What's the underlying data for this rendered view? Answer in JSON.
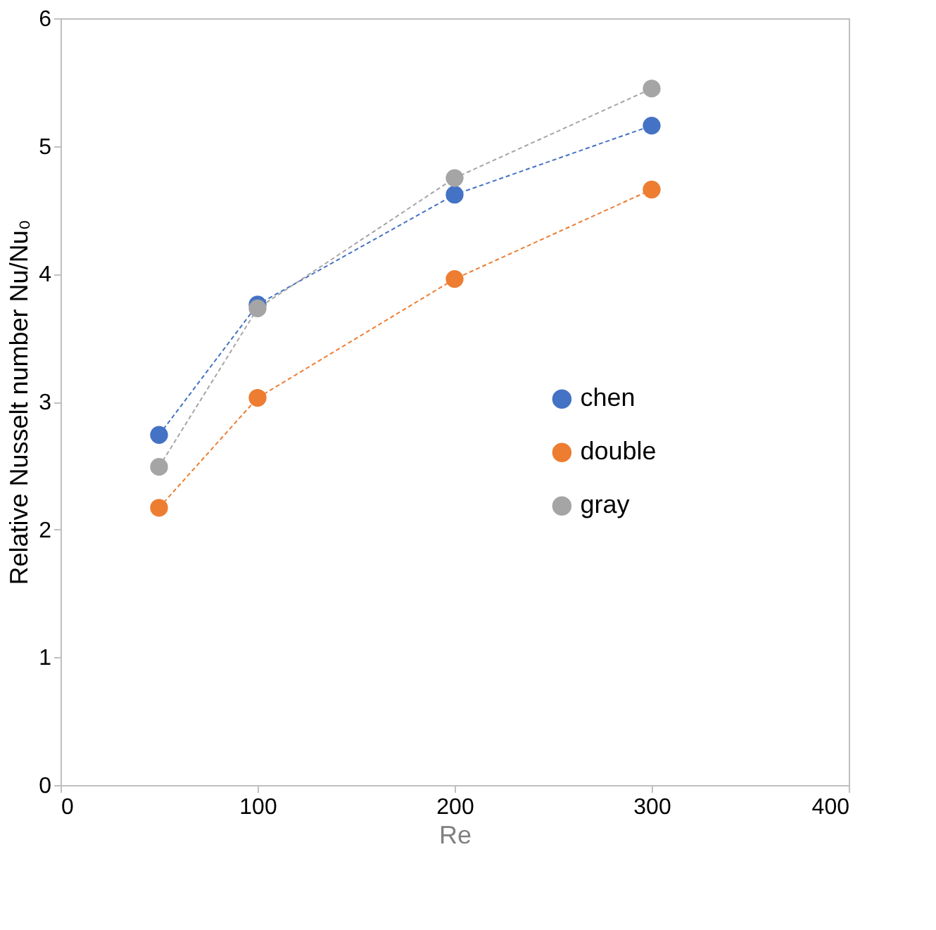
{
  "chart_data": {
    "type": "line",
    "xlabel": "Re",
    "ylabel": "Relative Nusselt number Nu/Nu₀",
    "x": [
      50,
      100,
      200,
      300
    ],
    "series": [
      {
        "name": "chen",
        "color": "#4472c4",
        "values": [
          2.74,
          3.76,
          4.62,
          5.16
        ]
      },
      {
        "name": "double",
        "color": "#ed7d31",
        "values": [
          2.17,
          3.03,
          3.96,
          4.66
        ]
      },
      {
        "name": "gray",
        "color": "#a5a5a5",
        "values": [
          2.49,
          3.73,
          4.75,
          5.45
        ]
      }
    ],
    "xlim": [
      0,
      400
    ],
    "xticks": [
      0,
      100,
      200,
      300,
      400
    ],
    "ylim": [
      0,
      6
    ],
    "yticks": [
      0,
      1,
      2,
      3,
      4,
      5,
      6
    ],
    "grid": false,
    "legend": "right",
    "marker": "circle",
    "line_style": "dashed"
  }
}
